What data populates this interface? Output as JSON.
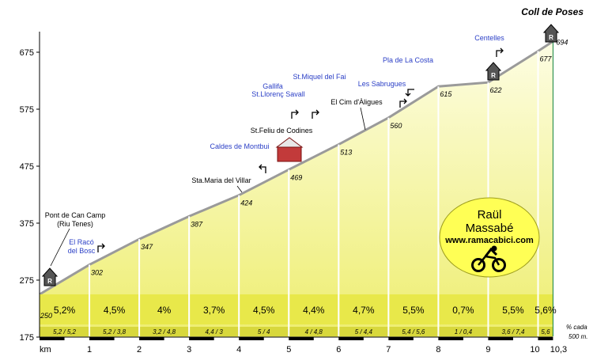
{
  "chart_data": {
    "type": "area",
    "title": "Coll de Poses",
    "xlabel": "km",
    "ylabel": "",
    "xlim": [
      0,
      10.3
    ],
    "ylim": [
      175,
      725
    ],
    "y_ticks": [
      175,
      275,
      375,
      475,
      575,
      675
    ],
    "x_ticks": [
      "1",
      "2",
      "3",
      "4",
      "5",
      "6",
      "7",
      "8",
      "9",
      "10",
      "10,3"
    ],
    "km_marks": [
      0,
      1,
      2,
      3,
      4,
      5,
      6,
      7,
      8,
      9,
      10,
      10.3
    ],
    "elevations": [
      250,
      302,
      347,
      387,
      424,
      469,
      513,
      560,
      615,
      622,
      677,
      694
    ],
    "gradients": [
      "5,2%",
      "4,5%",
      "4%",
      "3,7%",
      "4,5%",
      "4,4%",
      "4,7%",
      "5,5%",
      "0,7%",
      "5,5%",
      "5,6%"
    ],
    "split_gradients": [
      "5,2 / 5,2",
      "5,2 / 3,8",
      "3,2 / 4,8",
      "4,4 / 3",
      "5 / 4",
      "4 / 4,8",
      "5 / 4,4",
      "5,4 / 5,6",
      "1 / 0,4",
      "3,6 / 7,4",
      "5,6"
    ],
    "split_note": "% cada 500 m.",
    "grid": false,
    "places": [
      {
        "name": "Pont de Can Camp (Riu Tenes)",
        "km": 0.15,
        "style": "black"
      },
      {
        "name": "El Racó del Bosc",
        "km": 1.3,
        "style": "blue"
      },
      {
        "name": "Sta.Maria del Villar",
        "km": 3.3,
        "style": "black"
      },
      {
        "name": "Caldes de Montbui",
        "km": 4.5,
        "style": "blue"
      },
      {
        "name": "St.Feliu de Codines",
        "km": 4.95,
        "style": "black"
      },
      {
        "name": "Gallifa St.Llorenç Savall",
        "km": 4.95,
        "style": "blue"
      },
      {
        "name": "St.Miquel del Fai",
        "km": 5.15,
        "style": "blue"
      },
      {
        "name": "El Cim d'Àligues",
        "km": 6.55,
        "style": "black"
      },
      {
        "name": "Les Sabrugues",
        "km": 7.4,
        "style": "blue"
      },
      {
        "name": "Pla de La Costa",
        "km": 7.55,
        "style": "blue"
      },
      {
        "name": "Centelles",
        "km": 9.35,
        "style": "blue"
      }
    ]
  },
  "credit": {
    "name_line1": "Raül",
    "name_line2": "Massabé",
    "website": "www.ramacabici.com"
  },
  "colors": {
    "fill_top": "#fdfde3",
    "fill_bottom": "#f0f07c",
    "band": "#e8e84a",
    "profile_line": "#9a9a9a",
    "blue_label": "#2b3fc6",
    "ring": "#10813a",
    "credit_bg": "#ffff55"
  }
}
